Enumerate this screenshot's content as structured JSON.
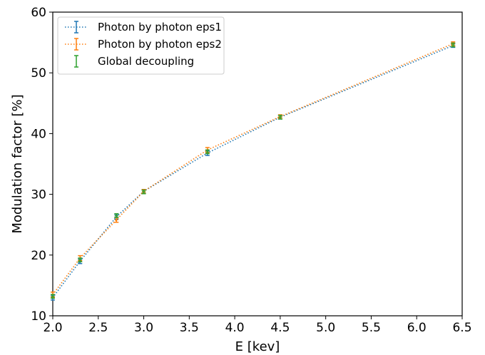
{
  "chart_data": {
    "type": "line",
    "xlabel": "E [kev]",
    "ylabel": "Modulation factor [%]",
    "xlim": [
      2.0,
      6.5
    ],
    "ylim": [
      10,
      60
    ],
    "xticks": [
      "2.0",
      "2.5",
      "3.0",
      "3.5",
      "4.0",
      "4.5",
      "5.0",
      "5.5",
      "6.0",
      "6.5"
    ],
    "yticks": [
      "10",
      "20",
      "30",
      "40",
      "50",
      "60"
    ],
    "grid": false,
    "legend_position": "top-left",
    "series": [
      {
        "name": "Photon by photon eps1",
        "color": "#1f77b4",
        "style": "dotted-line-errorbar",
        "x": [
          2.0,
          2.3,
          2.7,
          3.0,
          3.7,
          4.5,
          6.4
        ],
        "y": [
          13.0,
          19.0,
          26.3,
          30.5,
          36.8,
          42.7,
          54.5
        ],
        "err": [
          0.4,
          0.4,
          0.4,
          0.3,
          0.4,
          0.3,
          0.3
        ]
      },
      {
        "name": "Photon by photon eps2",
        "color": "#ff7f0e",
        "style": "dotted-line-errorbar",
        "x": [
          2.0,
          2.3,
          2.7,
          3.0,
          3.7,
          4.5,
          6.4
        ],
        "y": [
          13.5,
          19.5,
          25.8,
          30.5,
          37.3,
          42.8,
          54.8
        ],
        "err": [
          0.4,
          0.4,
          0.4,
          0.3,
          0.4,
          0.3,
          0.3
        ]
      },
      {
        "name": "Global decoupling",
        "color": "#2ca02c",
        "style": "errorbar-only",
        "x": [
          2.0,
          2.3,
          2.7,
          3.0,
          3.7,
          4.5,
          6.4
        ],
        "y": [
          13.2,
          19.2,
          26.5,
          30.4,
          37.0,
          42.7,
          54.6
        ],
        "err": [
          0.3,
          0.3,
          0.3,
          0.3,
          0.3,
          0.3,
          0.3
        ]
      }
    ]
  }
}
